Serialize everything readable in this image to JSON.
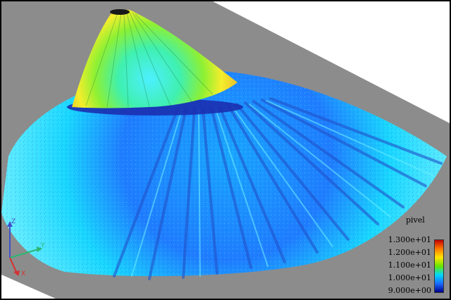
{
  "legend": {
    "title": "pivel",
    "labels": [
      "1.300e+01",
      "1.200e+01",
      "1.100e+01",
      "1.000e+01",
      "9.000e+00"
    ],
    "colors": {
      "max": "#c40000",
      "high": "#ff7a00",
      "mid_high": "#ffe600",
      "mid": "#66e600",
      "mid_low": "#00d8ff",
      "low": "#1a6cff",
      "min": "#00008c"
    }
  },
  "axes": {
    "z_label": "Z",
    "y_label": "Y",
    "x_label": "X"
  }
}
